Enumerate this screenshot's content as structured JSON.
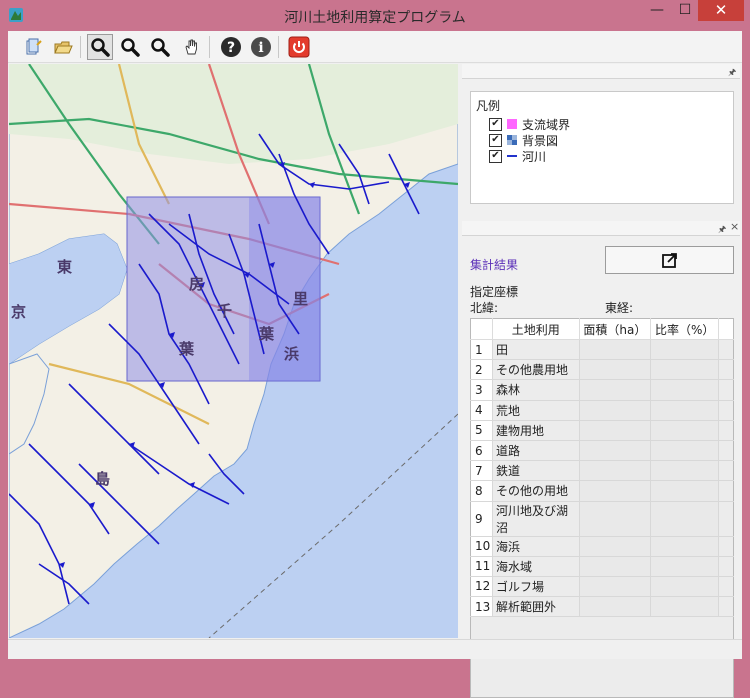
{
  "window": {
    "title": "河川土地利用算定プログラム",
    "minimize": "—",
    "maximize": "☐",
    "close": "✕"
  },
  "toolbar": {
    "buttons": [
      {
        "name": "add-layer-icon"
      },
      {
        "name": "open-folder-icon"
      },
      {
        "name": "zoom-select-icon"
      },
      {
        "name": "zoom-in-icon"
      },
      {
        "name": "zoom-out-icon"
      },
      {
        "name": "pan-hand-icon"
      },
      {
        "name": "help-icon",
        "glyph": "?"
      },
      {
        "name": "info-icon",
        "glyph": "i"
      },
      {
        "name": "power-icon"
      }
    ]
  },
  "map": {
    "labels": {
      "east": "東",
      "capital": "京",
      "chiba": "千",
      "ba": "葉",
      "sen": "房",
      "kyo": "総",
      "hama": "浜",
      "sato": "里",
      "shima": "島"
    }
  },
  "legend": {
    "pin": "🖈",
    "title": "凡例",
    "items": [
      {
        "label": "支流域界",
        "checked": "✔"
      },
      {
        "label": "背景図",
        "checked": "✔"
      },
      {
        "label": "河川",
        "checked": "✔"
      }
    ],
    "colors": {
      "basin": "#ff66ff",
      "river": "#2233cc"
    }
  },
  "results": {
    "pin": "🖈",
    "close": "×",
    "title": "集計結果",
    "coord_heading": "指定座標",
    "north_lat": "北緯:",
    "east_lon": "東経:",
    "columns": [
      "土地利用",
      "面積（ha）",
      "比率（%）"
    ],
    "rows": [
      {
        "no": "1",
        "name": "田"
      },
      {
        "no": "2",
        "name": "その他農用地"
      },
      {
        "no": "3",
        "name": "森林"
      },
      {
        "no": "4",
        "name": "荒地"
      },
      {
        "no": "5",
        "name": "建物用地"
      },
      {
        "no": "6",
        "name": "道路"
      },
      {
        "no": "7",
        "name": "鉄道"
      },
      {
        "no": "8",
        "name": "その他の用地"
      },
      {
        "no": "9",
        "name": "河川地及び湖沼"
      },
      {
        "no": "10",
        "name": "海浜"
      },
      {
        "no": "11",
        "name": "海水域"
      },
      {
        "no": "12",
        "name": "ゴルフ場"
      },
      {
        "no": "13",
        "name": "解析範囲外"
      }
    ]
  }
}
